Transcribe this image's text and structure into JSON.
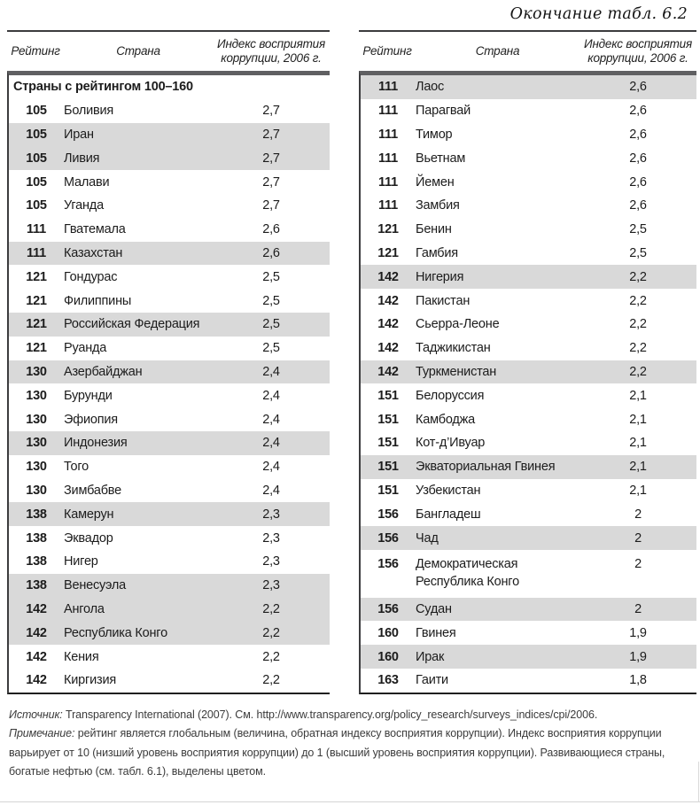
{
  "page": {
    "title": "Окончание табл. 6.2"
  },
  "table_header": {
    "col_rank": "Рейтинг",
    "col_country": "Страна",
    "col_index": "Индекс восприятия коррупции, 2006 г."
  },
  "left_table": {
    "group_header": "Страны с рейтингом 100–160",
    "rows": [
      {
        "rank": "105",
        "country": "Боливия",
        "value": "2,7",
        "shaded": false
      },
      {
        "rank": "105",
        "country": "Иран",
        "value": "2,7",
        "shaded": true
      },
      {
        "rank": "105",
        "country": "Ливия",
        "value": "2,7",
        "shaded": true
      },
      {
        "rank": "105",
        "country": "Малави",
        "value": "2,7",
        "shaded": false
      },
      {
        "rank": "105",
        "country": "Уганда",
        "value": "2,7",
        "shaded": false
      },
      {
        "rank": "111",
        "country": "Гватемала",
        "value": "2,6",
        "shaded": false
      },
      {
        "rank": "111",
        "country": "Казахстан",
        "value": "2,6",
        "shaded": true
      },
      {
        "rank": "121",
        "country": "Гондурас",
        "value": "2,5",
        "shaded": false
      },
      {
        "rank": "121",
        "country": "Филиппины",
        "value": "2,5",
        "shaded": false
      },
      {
        "rank": "121",
        "country": "Российская Федерация",
        "value": "2,5",
        "shaded": true
      },
      {
        "rank": "121",
        "country": "Руанда",
        "value": "2,5",
        "shaded": false
      },
      {
        "rank": "130",
        "country": "Азербайджан",
        "value": "2,4",
        "shaded": true
      },
      {
        "rank": "130",
        "country": "Бурунди",
        "value": "2,4",
        "shaded": false
      },
      {
        "rank": "130",
        "country": "Эфиопия",
        "value": "2,4",
        "shaded": false
      },
      {
        "rank": "130",
        "country": "Индонезия",
        "value": "2,4",
        "shaded": true
      },
      {
        "rank": "130",
        "country": "Того",
        "value": "2,4",
        "shaded": false
      },
      {
        "rank": "130",
        "country": "Зимбабве",
        "value": "2,4",
        "shaded": false
      },
      {
        "rank": "138",
        "country": "Камерун",
        "value": "2,3",
        "shaded": true
      },
      {
        "rank": "138",
        "country": "Эквадор",
        "value": "2,3",
        "shaded": false
      },
      {
        "rank": "138",
        "country": "Нигер",
        "value": "2,3",
        "shaded": false
      },
      {
        "rank": "138",
        "country": "Венесуэла",
        "value": "2,3",
        "shaded": true
      },
      {
        "rank": "142",
        "country": "Ангола",
        "value": "2,2",
        "shaded": true
      },
      {
        "rank": "142",
        "country": "Республика Конго",
        "value": "2,2",
        "shaded": true
      },
      {
        "rank": "142",
        "country": "Кения",
        "value": "2,2",
        "shaded": false
      },
      {
        "rank": "142",
        "country": "Киргизия",
        "value": "2,2",
        "shaded": false
      }
    ]
  },
  "right_table": {
    "rows": [
      {
        "rank": "111",
        "country": "Лаос",
        "value": "2,6",
        "shaded": true
      },
      {
        "rank": "111",
        "country": "Парагвай",
        "value": "2,6",
        "shaded": false
      },
      {
        "rank": "111",
        "country": "Тимор",
        "value": "2,6",
        "shaded": false
      },
      {
        "rank": "111",
        "country": "Вьетнам",
        "value": "2,6",
        "shaded": false
      },
      {
        "rank": "111",
        "country": "Йемен",
        "value": "2,6",
        "shaded": false
      },
      {
        "rank": "111",
        "country": "Замбия",
        "value": "2,6",
        "shaded": false
      },
      {
        "rank": "121",
        "country": "Бенин",
        "value": "2,5",
        "shaded": false
      },
      {
        "rank": "121",
        "country": "Гамбия",
        "value": "2,5",
        "shaded": false
      },
      {
        "rank": "142",
        "country": "Нигерия",
        "value": "2,2",
        "shaded": true
      },
      {
        "rank": "142",
        "country": "Пакистан",
        "value": "2,2",
        "shaded": false
      },
      {
        "rank": "142",
        "country": "Сьерра-Леоне",
        "value": "2,2",
        "shaded": false
      },
      {
        "rank": "142",
        "country": "Таджикистан",
        "value": "2,2",
        "shaded": false
      },
      {
        "rank": "142",
        "country": "Туркменистан",
        "value": "2,2",
        "shaded": true
      },
      {
        "rank": "151",
        "country": "Белоруссия",
        "value": "2,1",
        "shaded": false
      },
      {
        "rank": "151",
        "country": "Камбоджа",
        "value": "2,1",
        "shaded": false
      },
      {
        "rank": "151",
        "country": "Кот-д’Ивуар",
        "value": "2,1",
        "shaded": false
      },
      {
        "rank": "151",
        "country": "Экваториальная Гвинея",
        "value": "2,1",
        "shaded": true
      },
      {
        "rank": "151",
        "country": "Узбекистан",
        "value": "2,1",
        "shaded": false
      },
      {
        "rank": "156",
        "country": "Бангладеш",
        "value": "2",
        "shaded": false
      },
      {
        "rank": "156",
        "country": "Чад",
        "value": "2",
        "shaded": true
      },
      {
        "rank": "156",
        "country": "Демократическая Республика Конго",
        "value": "2",
        "shaded": false,
        "tall": true
      },
      {
        "rank": "156",
        "country": "Судан",
        "value": "2",
        "shaded": true
      },
      {
        "rank": "160",
        "country": "Гвинея",
        "value": "1,9",
        "shaded": false
      },
      {
        "rank": "160",
        "country": "Ирак",
        "value": "1,9",
        "shaded": true
      },
      {
        "rank": "163",
        "country": "Гаити",
        "value": "1,8",
        "shaded": false
      }
    ]
  },
  "footnotes": {
    "source_label": "Источник:",
    "source_text": "Transparency International (2007). См. http://www.transparency.org/policy_research/surveys_indices/cpi/2006.",
    "note_label": "Примечание:",
    "note_text": "рейтинг является глобальным (величина, обратная индексу восприятия коррупции). Индекс восприятия коррупции варьирует от 10 (низший уровень восприятия коррупции) до 1 (высший уровень восприятия коррупции). Развивающиеся страны, богатые нефтью (см. табл. 6.1), выделены цветом."
  },
  "colors": {
    "row_highlight": "#d9d9d9",
    "body_top_bar": "#606062",
    "text": "#1c1c1c"
  }
}
